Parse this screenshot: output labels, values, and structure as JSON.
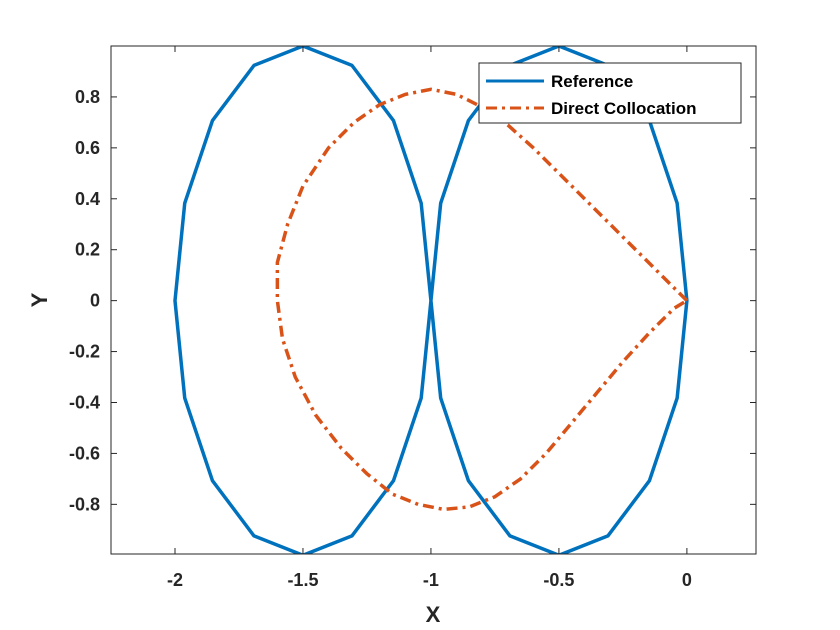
{
  "chart_data": {
    "type": "line",
    "xlabel": "X",
    "ylabel": "Y",
    "xlim": [
      -2.25,
      0.27
    ],
    "ylim": [
      -0.995,
      1.0
    ],
    "x_ticks": [
      -2,
      -1.5,
      -1,
      -0.5,
      0
    ],
    "x_tick_labels": [
      "-2",
      "-1.5",
      "-1",
      "-0.5",
      "0"
    ],
    "y_ticks": [
      -0.8,
      -0.6,
      -0.4,
      -0.2,
      0,
      0.2,
      0.4,
      0.6,
      0.8
    ],
    "y_tick_labels": [
      "-0.8",
      "-0.6",
      "-0.4",
      "-0.2",
      "0",
      "0.2",
      "0.4",
      "0.6",
      "0.8"
    ],
    "grid": false,
    "legend_position": "top-right",
    "series": [
      {
        "name": "Reference",
        "color": "#0072BD",
        "style": "solid",
        "x": [
          0,
          -0.0381,
          -0.1464,
          -0.3087,
          -0.5,
          -0.6913,
          -0.8536,
          -0.9619,
          -1.0,
          -1.0381,
          -1.1464,
          -1.3087,
          -1.5,
          -1.6913,
          -1.8536,
          -1.9619,
          -2.0,
          -1.9619,
          -1.8536,
          -1.6913,
          -1.5,
          -1.3087,
          -1.1464,
          -1.0381,
          -1.0,
          -0.9619,
          -0.8536,
          -0.6913,
          -0.5,
          -0.3087,
          -0.1464,
          -0.0381,
          0
        ],
        "y": [
          0,
          0.3827,
          0.7071,
          0.9239,
          1.0,
          0.9239,
          0.7071,
          0.3827,
          0,
          -0.3827,
          -0.7071,
          -0.9239,
          -1.0,
          -0.9239,
          -0.7071,
          -0.3827,
          0,
          0.3827,
          0.7071,
          0.9239,
          1.0,
          0.9239,
          0.7071,
          0.3827,
          0,
          -0.3827,
          -0.7071,
          -0.9239,
          -1.0,
          -0.9239,
          -0.7071,
          -0.3827,
          0
        ]
      },
      {
        "name": "Direct Collocation",
        "color": "#D95319",
        "style": "dashdot",
        "x": [
          0,
          -0.1,
          -0.2,
          -0.3,
          -0.4,
          -0.5,
          -0.6,
          -0.7,
          -0.8,
          -0.9,
          -1.0,
          -1.1,
          -1.2,
          -1.3,
          -1.4,
          -1.5,
          -1.56,
          -1.6,
          -1.6,
          -1.58,
          -1.53,
          -1.45,
          -1.35,
          -1.25,
          -1.15,
          -1.05,
          -0.95,
          -0.85,
          -0.75,
          -0.65,
          -0.55,
          -0.45,
          -0.35,
          -0.25,
          -0.15,
          -0.05,
          0
        ],
        "y": [
          0,
          0.1,
          0.2,
          0.3,
          0.4,
          0.5,
          0.6,
          0.69,
          0.76,
          0.81,
          0.83,
          0.81,
          0.77,
          0.7,
          0.6,
          0.45,
          0.3,
          0.15,
          0,
          -0.15,
          -0.3,
          -0.45,
          -0.58,
          -0.68,
          -0.76,
          -0.8,
          -0.82,
          -0.81,
          -0.77,
          -0.7,
          -0.6,
          -0.48,
          -0.36,
          -0.24,
          -0.13,
          -0.03,
          0
        ]
      }
    ]
  }
}
